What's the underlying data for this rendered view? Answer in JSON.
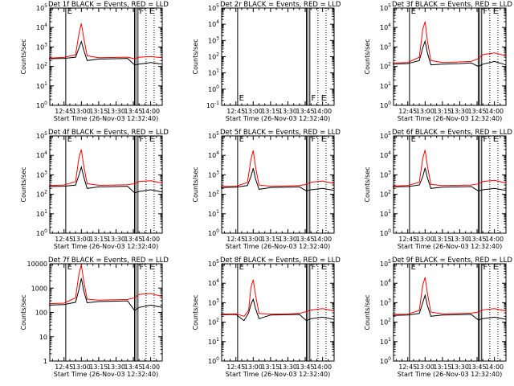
{
  "colors": {
    "events": "#000000",
    "lld": "#ff0000",
    "frame": "#000000"
  },
  "figure": {
    "xlabel": "Start Time (26-Nov-03 12:32:40)",
    "ylabel": "Counts/sec",
    "x_ticks": [
      "12:45",
      "13:00",
      "13:15",
      "13:30",
      "13:45",
      "14:00"
    ],
    "x_range": [
      "12:32:40",
      "14:10"
    ],
    "y_ticks_exp": [
      "10^0",
      "10^1",
      "10^2",
      "10^3",
      "10^4",
      "10^5"
    ],
    "y_ticks_plain": [
      "1",
      "10",
      "100",
      "1000",
      "10000"
    ],
    "flag_labels": [
      "E",
      "F",
      "E"
    ],
    "legend_text": "BLACK = Events, RED = LLD"
  },
  "chart_data": [
    {
      "type": "line",
      "title": "Det 1f BLACK = Events, RED = LLD",
      "yscale": "log",
      "ylim": [
        1,
        100000
      ],
      "tick_style": "exp",
      "series": [
        {
          "name": "Events",
          "x": [
            "12:32",
            "12:45",
            "12:55",
            "12:58",
            "13:00",
            "13:02",
            "13:05",
            "13:15",
            "13:30",
            "13:40",
            "13:46",
            "13:50",
            "14:00",
            "14:10"
          ],
          "y": [
            250,
            260,
            300,
            900,
            1900,
            700,
            200,
            240,
            250,
            260,
            120,
            130,
            160,
            130
          ]
        },
        {
          "name": "LLD",
          "x": [
            "12:32",
            "12:45",
            "12:55",
            "12:58",
            "13:00",
            "13:02",
            "13:05",
            "13:15",
            "13:30",
            "13:40",
            "13:46",
            "13:50",
            "14:00",
            "14:10"
          ],
          "y": [
            270,
            290,
            400,
            5000,
            16000,
            3000,
            350,
            280,
            290,
            300,
            250,
            300,
            320,
            280
          ]
        }
      ]
    },
    {
      "type": "line",
      "title": "Det 2r BLACK = Events, RED = LLD",
      "yscale": "log",
      "ylim": [
        0.1,
        100000
      ],
      "tick_style": "exp",
      "series": []
    },
    {
      "type": "line",
      "title": "Det 3f BLACK = Events, RED = LLD",
      "yscale": "log",
      "ylim": [
        1,
        100000
      ],
      "tick_style": "exp",
      "series": [
        {
          "name": "Events",
          "x": [
            "12:32",
            "12:45",
            "12:55",
            "12:58",
            "13:00",
            "13:02",
            "13:05",
            "13:15",
            "13:30",
            "13:40",
            "13:46",
            "13:50",
            "14:00",
            "14:10"
          ],
          "y": [
            130,
            140,
            200,
            900,
            2000,
            500,
            120,
            130,
            140,
            150,
            100,
            130,
            180,
            120
          ]
        },
        {
          "name": "LLD",
          "x": [
            "12:32",
            "12:45",
            "12:55",
            "12:58",
            "13:00",
            "13:02",
            "13:05",
            "13:15",
            "13:30",
            "13:40",
            "13:46",
            "13:50",
            "14:00",
            "14:10"
          ],
          "y": [
            150,
            160,
            300,
            8000,
            20000,
            2000,
            200,
            160,
            170,
            180,
            250,
            400,
            500,
            350
          ]
        }
      ]
    },
    {
      "type": "line",
      "title": "Det 4f BLACK = Events, RED = LLD",
      "yscale": "log",
      "ylim": [
        1,
        100000
      ],
      "tick_style": "exp",
      "series": [
        {
          "name": "Events",
          "x": [
            "12:32",
            "12:45",
            "12:55",
            "12:58",
            "13:00",
            "13:02",
            "13:05",
            "13:15",
            "13:30",
            "13:40",
            "13:46",
            "13:50",
            "14:00",
            "14:10"
          ],
          "y": [
            250,
            260,
            300,
            1000,
            2500,
            800,
            200,
            240,
            250,
            260,
            120,
            140,
            170,
            130
          ]
        },
        {
          "name": "LLD",
          "x": [
            "12:32",
            "12:45",
            "12:55",
            "12:58",
            "13:00",
            "13:02",
            "13:05",
            "13:15",
            "13:30",
            "13:40",
            "13:46",
            "13:50",
            "14:00",
            "14:10"
          ],
          "y": [
            280,
            300,
            450,
            8000,
            20000,
            3000,
            350,
            290,
            300,
            310,
            350,
            450,
            500,
            380
          ]
        }
      ]
    },
    {
      "type": "line",
      "title": "Det 5f BLACK = Events, RED = LLD",
      "yscale": "log",
      "ylim": [
        1,
        100000
      ],
      "tick_style": "exp",
      "series": [
        {
          "name": "Events",
          "x": [
            "12:32",
            "12:45",
            "12:55",
            "12:58",
            "13:00",
            "13:02",
            "13:05",
            "13:15",
            "13:30",
            "13:40",
            "13:46",
            "13:50",
            "14:00",
            "14:10"
          ],
          "y": [
            220,
            230,
            280,
            800,
            2200,
            600,
            180,
            220,
            230,
            240,
            150,
            170,
            200,
            160
          ]
        },
        {
          "name": "LLD",
          "x": [
            "12:32",
            "12:45",
            "12:55",
            "12:58",
            "13:00",
            "13:02",
            "13:05",
            "13:15",
            "13:30",
            "13:40",
            "13:46",
            "13:50",
            "14:00",
            "14:10"
          ],
          "y": [
            250,
            260,
            400,
            6000,
            18000,
            2500,
            300,
            260,
            270,
            280,
            320,
            420,
            480,
            360
          ]
        }
      ]
    },
    {
      "type": "line",
      "title": "Det 6f BLACK = Events, RED = LLD",
      "yscale": "log",
      "ylim": [
        1,
        100000
      ],
      "tick_style": "exp",
      "series": [
        {
          "name": "Events",
          "x": [
            "12:32",
            "12:45",
            "12:55",
            "12:58",
            "13:00",
            "13:02",
            "13:05",
            "13:15",
            "13:30",
            "13:40",
            "13:46",
            "13:50",
            "14:00",
            "14:10"
          ],
          "y": [
            240,
            250,
            300,
            800,
            2300,
            700,
            200,
            230,
            240,
            250,
            150,
            170,
            200,
            160
          ]
        },
        {
          "name": "LLD",
          "x": [
            "12:32",
            "12:45",
            "12:55",
            "12:58",
            "13:00",
            "13:02",
            "13:05",
            "13:15",
            "13:30",
            "13:40",
            "13:46",
            "13:50",
            "14:00",
            "14:10"
          ],
          "y": [
            270,
            280,
            420,
            7000,
            19000,
            2800,
            320,
            280,
            290,
            300,
            340,
            450,
            520,
            380
          ]
        }
      ]
    },
    {
      "type": "line",
      "title": "Det 7f BLACK = Events, RED = LLD",
      "yscale": "log",
      "ylim": [
        1,
        10000
      ],
      "tick_style": "plain",
      "series": [
        {
          "name": "Events",
          "x": [
            "12:32",
            "12:45",
            "12:55",
            "12:58",
            "13:00",
            "13:02",
            "13:05",
            "13:15",
            "13:30",
            "13:40",
            "13:46",
            "13:50",
            "14:00",
            "14:10"
          ],
          "y": [
            200,
            210,
            260,
            900,
            2500,
            800,
            250,
            280,
            290,
            300,
            120,
            160,
            200,
            160
          ]
        },
        {
          "name": "LLD",
          "x": [
            "12:32",
            "12:45",
            "12:55",
            "12:58",
            "13:00",
            "13:02",
            "13:05",
            "13:15",
            "13:30",
            "13:40",
            "13:46",
            "13:50",
            "14:00",
            "14:10"
          ],
          "y": [
            230,
            240,
            400,
            4000,
            9000,
            2000,
            350,
            320,
            330,
            340,
            400,
            550,
            600,
            450
          ]
        }
      ]
    },
    {
      "type": "line",
      "title": "Det 8f BLACK = Events, RED = LLD",
      "yscale": "log",
      "ylim": [
        1,
        100000
      ],
      "tick_style": "exp",
      "series": [
        {
          "name": "Events",
          "x": [
            "12:32",
            "12:45",
            "12:52",
            "12:56",
            "12:58",
            "13:00",
            "13:02",
            "13:05",
            "13:15",
            "13:30",
            "13:40",
            "13:46",
            "13:50",
            "14:00",
            "14:10"
          ],
          "y": [
            240,
            250,
            120,
            300,
            800,
            1500,
            500,
            150,
            230,
            240,
            250,
            120,
            150,
            180,
            140
          ]
        },
        {
          "name": "LLD",
          "x": [
            "12:32",
            "12:45",
            "12:52",
            "12:56",
            "12:58",
            "13:00",
            "13:02",
            "13:05",
            "13:15",
            "13:30",
            "13:40",
            "13:46",
            "13:50",
            "14:00",
            "14:10"
          ],
          "y": [
            260,
            270,
            200,
            400,
            6000,
            15000,
            2500,
            280,
            260,
            270,
            280,
            350,
            420,
            500,
            380
          ]
        }
      ]
    },
    {
      "type": "line",
      "title": "Det 9f BLACK = Events, RED = LLD",
      "yscale": "log",
      "ylim": [
        1,
        100000
      ],
      "tick_style": "exp",
      "series": [
        {
          "name": "Events",
          "x": [
            "12:32",
            "12:45",
            "12:55",
            "12:58",
            "13:00",
            "13:02",
            "13:05",
            "13:15",
            "13:30",
            "13:40",
            "13:46",
            "13:50",
            "14:00",
            "14:10"
          ],
          "y": [
            220,
            230,
            280,
            1000,
            2400,
            700,
            200,
            230,
            240,
            250,
            130,
            150,
            180,
            140
          ]
        },
        {
          "name": "LLD",
          "x": [
            "12:32",
            "12:45",
            "12:55",
            "12:58",
            "13:00",
            "13:02",
            "13:05",
            "13:15",
            "13:30",
            "13:40",
            "13:46",
            "13:50",
            "14:00",
            "14:10"
          ],
          "y": [
            250,
            260,
            400,
            8000,
            20000,
            3000,
            330,
            270,
            280,
            290,
            330,
            430,
            500,
            370
          ]
        }
      ]
    }
  ]
}
